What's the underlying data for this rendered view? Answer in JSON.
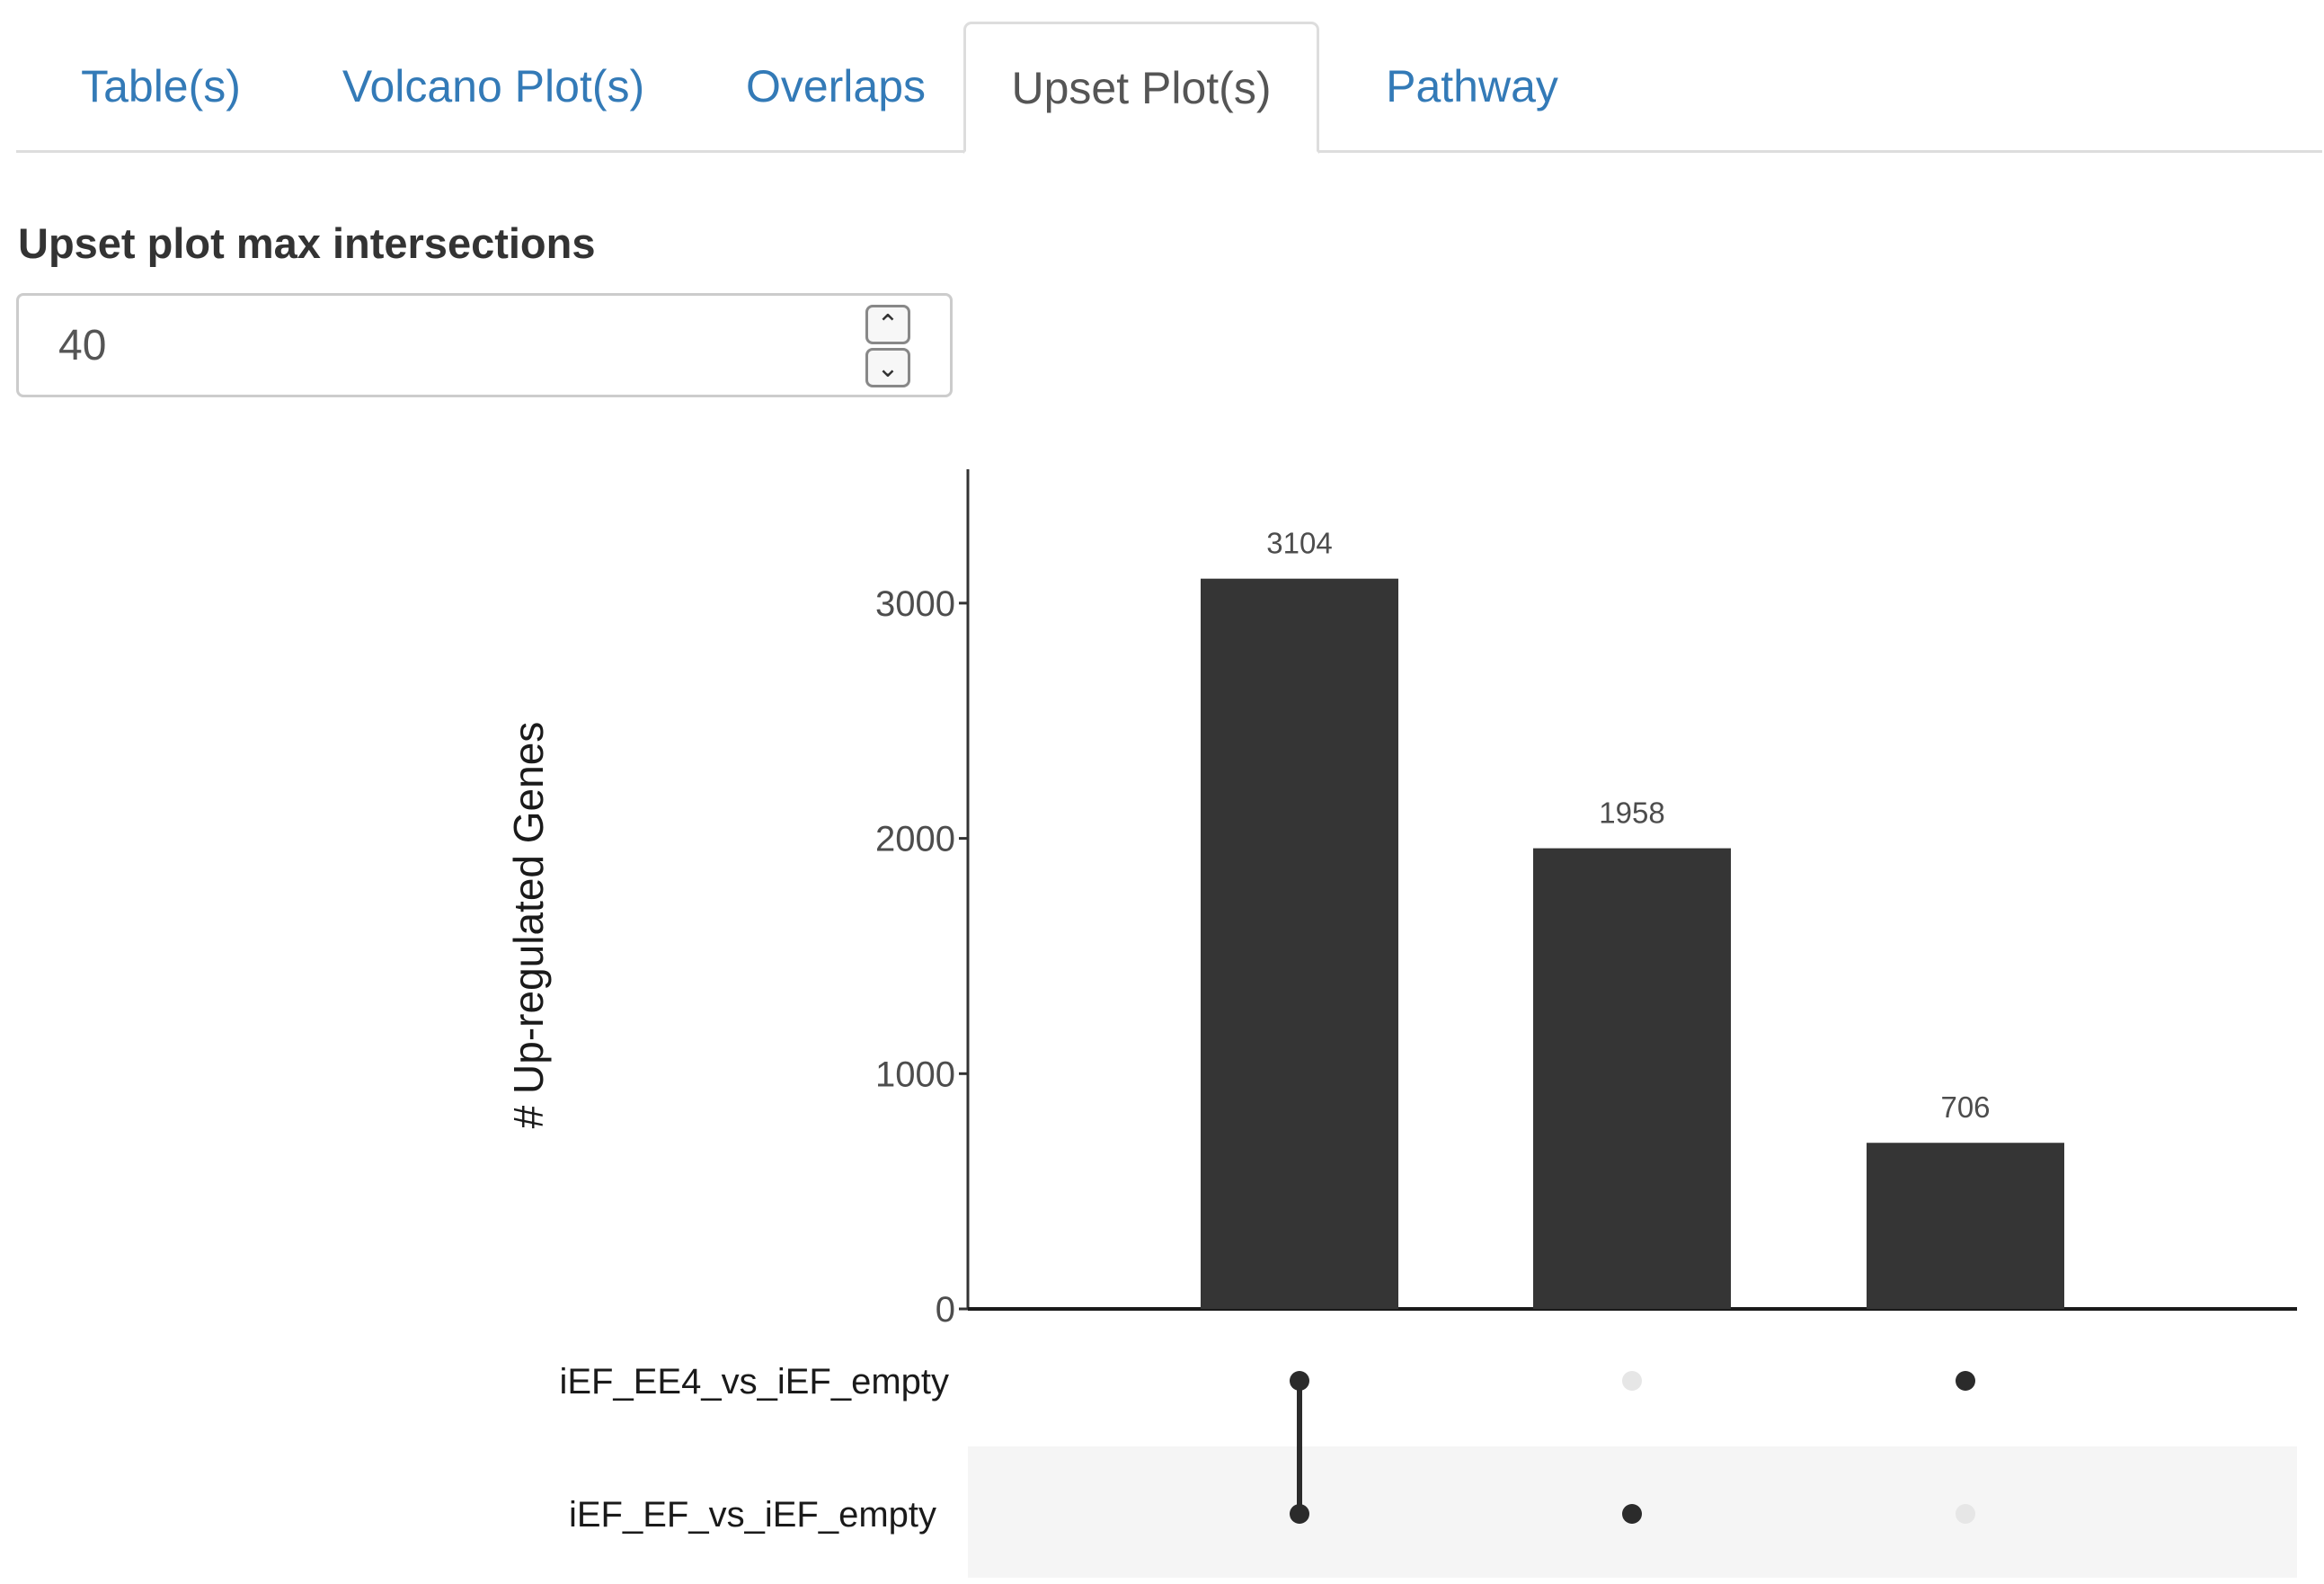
{
  "tabs": [
    {
      "label": "Table(s)",
      "active": false
    },
    {
      "label": "Volcano Plot(s)",
      "active": false
    },
    {
      "label": "Overlaps",
      "active": false
    },
    {
      "label": "Upset Plot(s)",
      "active": true
    },
    {
      "label": "Pathway",
      "active": false
    }
  ],
  "control": {
    "label": "Upset plot max intersections",
    "value": "40",
    "increment_icon": "chevron-up-icon",
    "decrement_icon": "chevron-down-icon"
  },
  "chart_data": {
    "type": "bar",
    "ylabel": "# Up-regulated Genes",
    "ylim": [
      0,
      3500
    ],
    "yticks": [
      0,
      1000,
      2000,
      3000
    ],
    "values": [
      3104,
      1958,
      706
    ],
    "sets": [
      "iEF_EE4_vs_iEF_empty",
      "iEF_EF_vs_iEF_empty"
    ],
    "membership": [
      [
        true,
        true
      ],
      [
        false,
        true
      ],
      [
        true,
        false
      ]
    ],
    "bar_color": "#353535",
    "dot_on_color": "#2b2b2b",
    "dot_off_color": "#e6e6e6",
    "stripe_color": "#f5f5f5"
  }
}
